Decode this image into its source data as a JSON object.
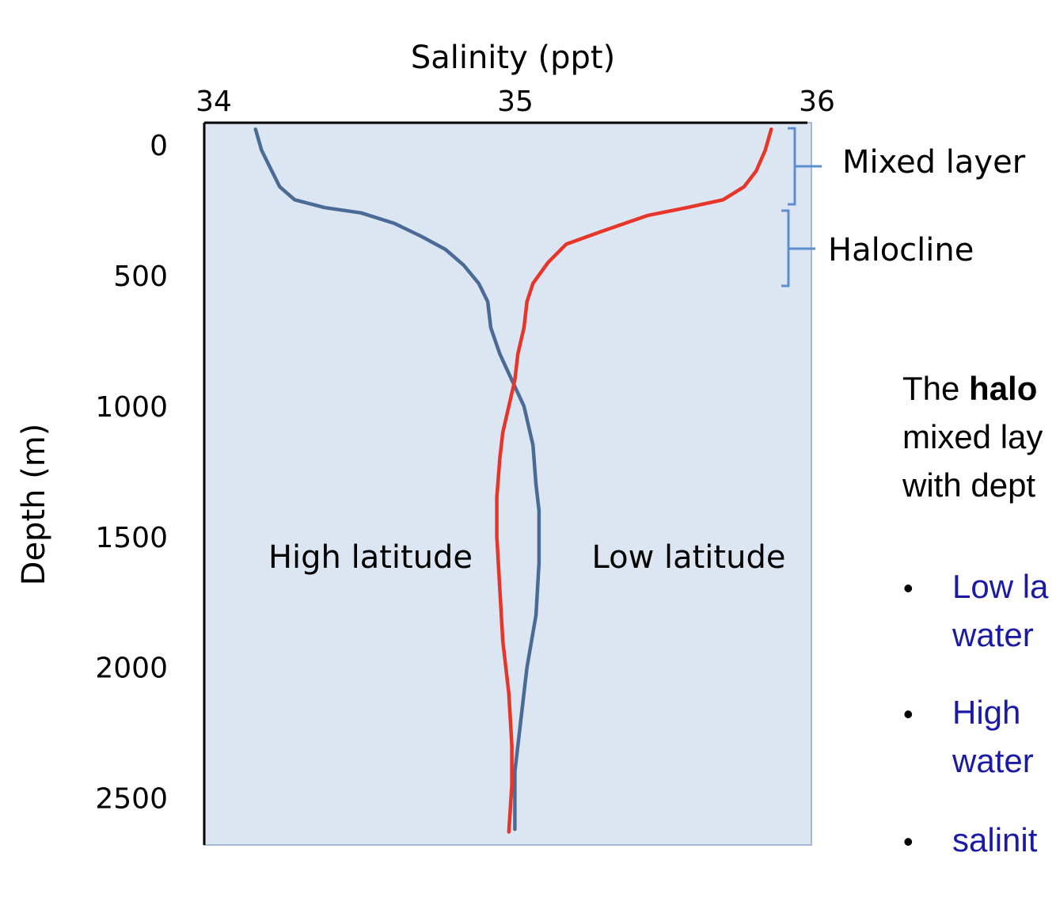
{
  "chart_data": {
    "type": "line",
    "title": "Salinity (ppt)",
    "xlabel": "Salinity (ppt)",
    "ylabel": "Depth (m)",
    "x_axis_position": "top",
    "y_axis_inverted": true,
    "xlim": [
      34,
      36
    ],
    "ylim": [
      -85,
      2680
    ],
    "x_ticks": [
      "34",
      "35",
      "36"
    ],
    "y_ticks": [
      "0",
      "500",
      "1000",
      "1500",
      "2000",
      "2500"
    ],
    "grid": false,
    "background_color": "#dce6f2",
    "series": [
      {
        "name": "High latitude",
        "color": "#4a6b96",
        "points": [
          [
            34.17,
            -60
          ],
          [
            34.19,
            20
          ],
          [
            34.22,
            90
          ],
          [
            34.25,
            160
          ],
          [
            34.3,
            210
          ],
          [
            34.4,
            240
          ],
          [
            34.52,
            260
          ],
          [
            34.63,
            300
          ],
          [
            34.72,
            350
          ],
          [
            34.8,
            400
          ],
          [
            34.86,
            460
          ],
          [
            34.91,
            530
          ],
          [
            34.94,
            600
          ],
          [
            34.95,
            700
          ],
          [
            34.98,
            800
          ],
          [
            35.02,
            900
          ],
          [
            35.06,
            1000
          ],
          [
            35.09,
            1150
          ],
          [
            35.1,
            1300
          ],
          [
            35.11,
            1400
          ],
          [
            35.11,
            1600
          ],
          [
            35.1,
            1800
          ],
          [
            35.07,
            2000
          ],
          [
            35.05,
            2200
          ],
          [
            35.03,
            2400
          ],
          [
            35.03,
            2620
          ]
        ]
      },
      {
        "name": "Low latitude",
        "color": "#e8352a",
        "points": [
          [
            35.88,
            -60
          ],
          [
            35.86,
            20
          ],
          [
            35.83,
            100
          ],
          [
            35.79,
            160
          ],
          [
            35.72,
            210
          ],
          [
            35.6,
            240
          ],
          [
            35.47,
            270
          ],
          [
            35.32,
            330
          ],
          [
            35.2,
            380
          ],
          [
            35.14,
            450
          ],
          [
            35.09,
            530
          ],
          [
            35.07,
            600
          ],
          [
            35.06,
            700
          ],
          [
            35.04,
            800
          ],
          [
            35.03,
            900
          ],
          [
            35.01,
            1000
          ],
          [
            34.99,
            1100
          ],
          [
            34.98,
            1200
          ],
          [
            34.97,
            1350
          ],
          [
            34.97,
            1500
          ],
          [
            34.98,
            1700
          ],
          [
            34.99,
            1900
          ],
          [
            35.01,
            2100
          ],
          [
            35.02,
            2300
          ],
          [
            35.02,
            2450
          ],
          [
            35.01,
            2630
          ]
        ]
      }
    ],
    "annotations": [
      {
        "text": "Mixed layer",
        "depth_range": [
          -85,
          200
        ]
      },
      {
        "text": "Halocline",
        "depth_range": [
          220,
          500
        ]
      }
    ]
  },
  "text_panel": {
    "paragraph_start": "The ",
    "paragraph_bold": "halo",
    "line2": "mixed lay",
    "line3": "with dept",
    "bullets": [
      {
        "line1": "Low la",
        "line2": "water"
      },
      {
        "line1": "High",
        "line2": "water"
      },
      {
        "line1": "salinit"
      }
    ],
    "bullet_glyph": "•",
    "bullet_color": "#1a1aa6"
  }
}
